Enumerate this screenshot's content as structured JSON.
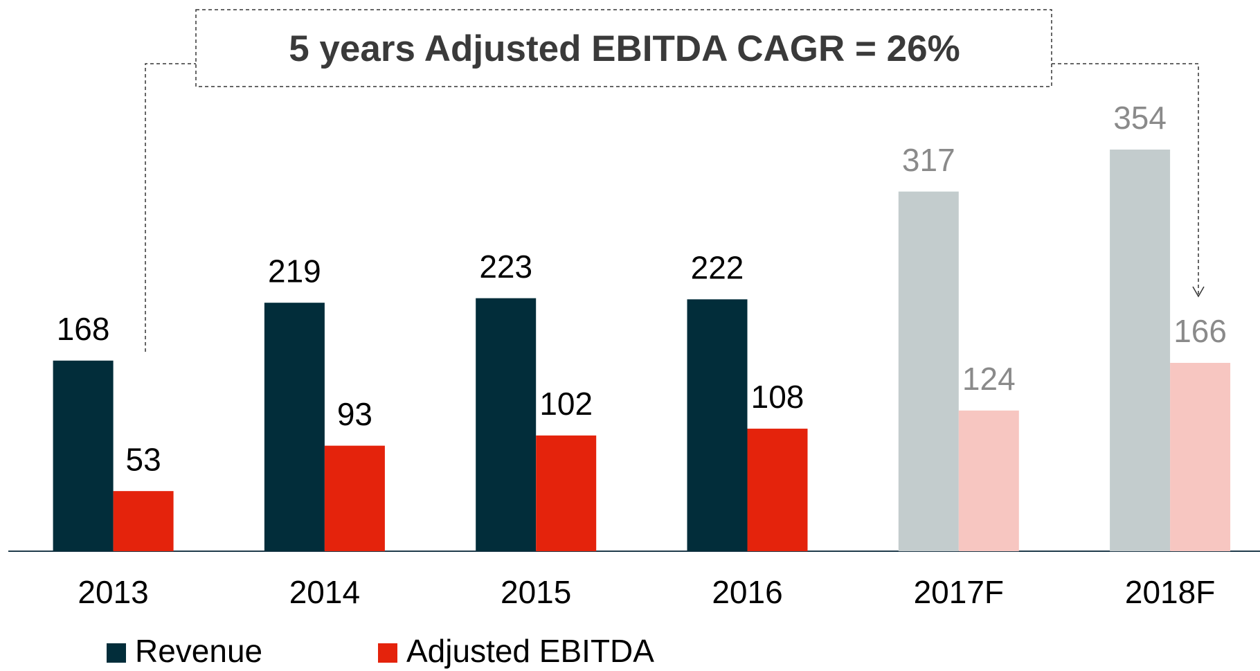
{
  "chart_data": {
    "type": "bar",
    "annotation": "5 years Adjusted EBITDA CAGR = 26%",
    "categories": [
      "2013",
      "2014",
      "2015",
      "2016",
      "2017F",
      "2018F"
    ],
    "series": [
      {
        "name": "Revenue",
        "color": "#022d3a",
        "colors": [
          "#022d3a",
          "#022d3a",
          "#022d3a",
          "#022d3a",
          "#c3cccd",
          "#c3cccd"
        ],
        "values": [
          168,
          219,
          223,
          222,
          317,
          354
        ]
      },
      {
        "name": "Adjusted EBITDA",
        "color": "#e4230c",
        "colors": [
          "#e4230c",
          "#e4230c",
          "#e4230c",
          "#e4230c",
          "#f7c6c1",
          "#f7c6c1"
        ],
        "values": [
          53,
          93,
          102,
          108,
          124,
          166
        ]
      }
    ],
    "label_colors": [
      "#000000",
      "#000000",
      "#000000",
      "#000000",
      "#8a8a8a",
      "#8a8a8a"
    ],
    "legend": "bottom-left"
  }
}
